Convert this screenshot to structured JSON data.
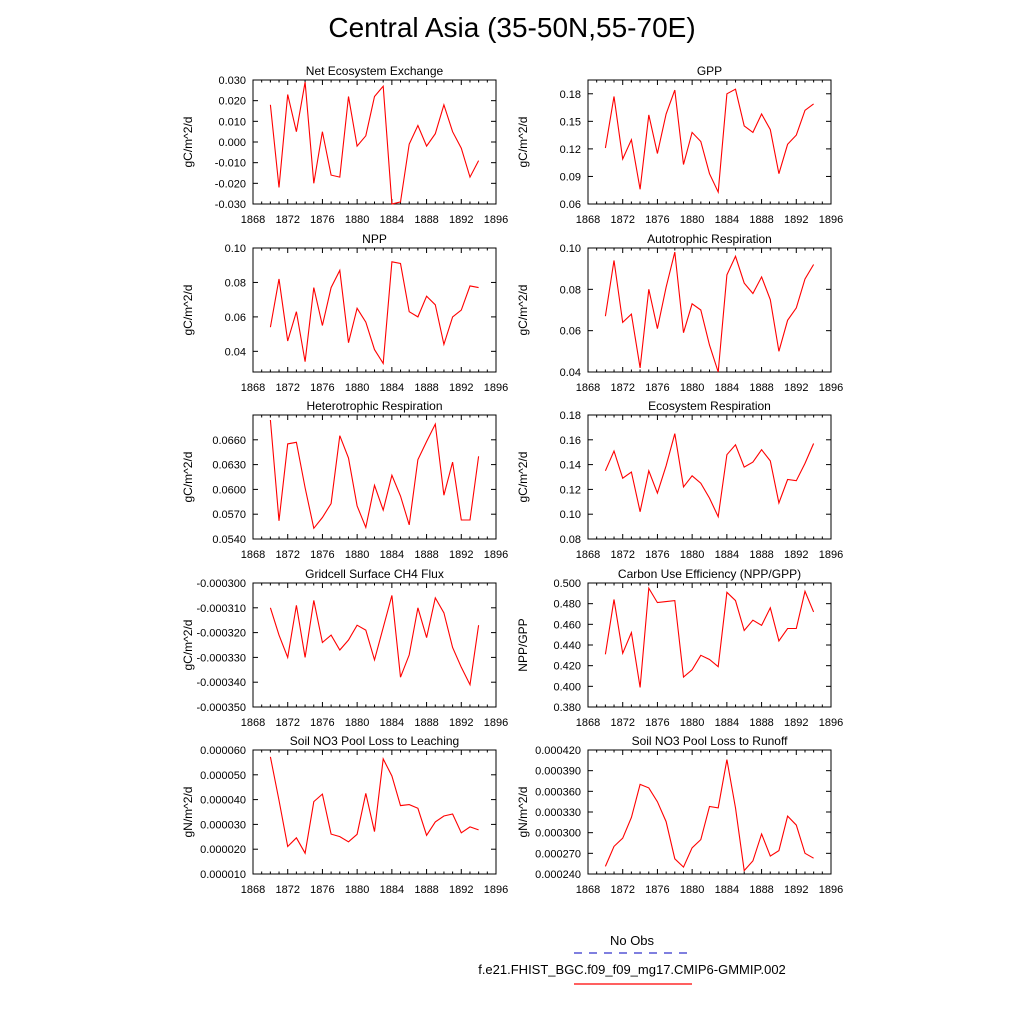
{
  "figure": {
    "title": "Central Asia (35-50N,55-70E)",
    "line_color": "#ff0000",
    "obs_color": "#3333cc"
  },
  "legend": {
    "obs_label": "No Obs",
    "model_label": "f.e21.FHIST_BGC.f09_f09_mg17.CMIP6-GMMIP.002"
  },
  "chart_data": [
    {
      "type": "line",
      "title": "Net Ecosystem Exchange",
      "ylabel": "gC/m^2/d",
      "xlim": [
        1868,
        1896
      ],
      "ylim": [
        -0.03,
        0.03
      ],
      "x_ticks": [
        "1868",
        "1872",
        "1876",
        "1880",
        "1884",
        "1888",
        "1892",
        "1896"
      ],
      "y_ticks": [
        "-0.030",
        "-0.020",
        "-0.010",
        "0.000",
        "0.010",
        "0.020",
        "0.030"
      ],
      "x": [
        1870,
        1871,
        1872,
        1873,
        1874,
        1875,
        1876,
        1877,
        1878,
        1879,
        1880,
        1881,
        1882,
        1883,
        1884,
        1885,
        1886,
        1887,
        1888,
        1889,
        1890,
        1891,
        1892,
        1893,
        1894
      ],
      "series": [
        {
          "values": [
            0.018,
            -0.022,
            0.023,
            0.005,
            0.029,
            -0.02,
            0.005,
            -0.016,
            -0.017,
            0.022,
            -0.002,
            0.003,
            0.022,
            0.027,
            -0.03,
            -0.029,
            -0.001,
            0.008,
            -0.002,
            0.004,
            0.018,
            0.005,
            -0.003,
            -0.017,
            -0.009
          ]
        }
      ]
    },
    {
      "type": "line",
      "title": "GPP",
      "ylabel": "gC/m^2/d",
      "xlim": [
        1868,
        1896
      ],
      "ylim": [
        0.06,
        0.195
      ],
      "x_ticks": [
        "1868",
        "1872",
        "1876",
        "1880",
        "1884",
        "1888",
        "1892",
        "1896"
      ],
      "y_ticks": [
        "0.06",
        "0.09",
        "0.12",
        "0.15",
        "0.18"
      ],
      "x": [
        1870,
        1871,
        1872,
        1873,
        1874,
        1875,
        1876,
        1877,
        1878,
        1879,
        1880,
        1881,
        1882,
        1883,
        1884,
        1885,
        1886,
        1887,
        1888,
        1889,
        1890,
        1891,
        1892,
        1893,
        1894
      ],
      "series": [
        {
          "values": [
            0.121,
            0.177,
            0.109,
            0.13,
            0.076,
            0.157,
            0.115,
            0.158,
            0.184,
            0.103,
            0.138,
            0.128,
            0.093,
            0.073,
            0.18,
            0.185,
            0.145,
            0.138,
            0.158,
            0.141,
            0.093,
            0.125,
            0.135,
            0.162,
            0.169
          ]
        }
      ]
    },
    {
      "type": "line",
      "title": "NPP",
      "ylabel": "gC/m^2/d",
      "xlim": [
        1868,
        1896
      ],
      "ylim": [
        0.028,
        0.1
      ],
      "x_ticks": [
        "1868",
        "1872",
        "1876",
        "1880",
        "1884",
        "1888",
        "1892",
        "1896"
      ],
      "y_ticks": [
        "0.04",
        "0.06",
        "0.08",
        "0.10"
      ],
      "x": [
        1870,
        1871,
        1872,
        1873,
        1874,
        1875,
        1876,
        1877,
        1878,
        1879,
        1880,
        1881,
        1882,
        1883,
        1884,
        1885,
        1886,
        1887,
        1888,
        1889,
        1890,
        1891,
        1892,
        1893,
        1894
      ],
      "series": [
        {
          "values": [
            0.054,
            0.082,
            0.046,
            0.063,
            0.034,
            0.077,
            0.055,
            0.077,
            0.087,
            0.045,
            0.065,
            0.057,
            0.041,
            0.033,
            0.092,
            0.091,
            0.063,
            0.06,
            0.072,
            0.067,
            0.044,
            0.06,
            0.064,
            0.078,
            0.077
          ]
        }
      ]
    },
    {
      "type": "line",
      "title": "Autotrophic Respiration",
      "ylabel": "gC/m^2/d",
      "xlim": [
        1868,
        1896
      ],
      "ylim": [
        0.04,
        0.1
      ],
      "x_ticks": [
        "1868",
        "1872",
        "1876",
        "1880",
        "1884",
        "1888",
        "1892",
        "1896"
      ],
      "y_ticks": [
        "0.04",
        "0.06",
        "0.08",
        "0.10"
      ],
      "x": [
        1870,
        1871,
        1872,
        1873,
        1874,
        1875,
        1876,
        1877,
        1878,
        1879,
        1880,
        1881,
        1882,
        1883,
        1884,
        1885,
        1886,
        1887,
        1888,
        1889,
        1890,
        1891,
        1892,
        1893,
        1894
      ],
      "series": [
        {
          "values": [
            0.067,
            0.094,
            0.064,
            0.068,
            0.042,
            0.08,
            0.061,
            0.081,
            0.098,
            0.059,
            0.073,
            0.07,
            0.053,
            0.04,
            0.087,
            0.096,
            0.083,
            0.078,
            0.086,
            0.075,
            0.05,
            0.065,
            0.071,
            0.085,
            0.092
          ]
        }
      ]
    },
    {
      "type": "line",
      "title": "Heterotrophic Respiration",
      "ylabel": "gC/m^2/d",
      "xlim": [
        1868,
        1896
      ],
      "ylim": [
        0.054,
        0.069
      ],
      "x_ticks": [
        "1868",
        "1872",
        "1876",
        "1880",
        "1884",
        "1888",
        "1892",
        "1896"
      ],
      "y_ticks": [
        "0.0540",
        "0.0570",
        "0.0600",
        "0.0630",
        "0.0660"
      ],
      "x": [
        1870,
        1871,
        1872,
        1873,
        1874,
        1875,
        1876,
        1877,
        1878,
        1879,
        1880,
        1881,
        1882,
        1883,
        1884,
        1885,
        1886,
        1887,
        1888,
        1889,
        1890,
        1891,
        1892,
        1893,
        1894
      ],
      "series": [
        {
          "values": [
            0.0684,
            0.0562,
            0.0655,
            0.0657,
            0.0602,
            0.0553,
            0.0566,
            0.0583,
            0.0665,
            0.0638,
            0.058,
            0.0554,
            0.0605,
            0.0575,
            0.0617,
            0.0592,
            0.0557,
            0.0636,
            0.0658,
            0.0679,
            0.0593,
            0.0633,
            0.0563,
            0.0563,
            0.064
          ]
        }
      ]
    },
    {
      "type": "line",
      "title": "Ecosystem Respiration",
      "ylabel": "gC/m^2/d",
      "xlim": [
        1868,
        1896
      ],
      "ylim": [
        0.08,
        0.18
      ],
      "x_ticks": [
        "1868",
        "1872",
        "1876",
        "1880",
        "1884",
        "1888",
        "1892",
        "1896"
      ],
      "y_ticks": [
        "0.08",
        "0.10",
        "0.12",
        "0.14",
        "0.16",
        "0.18"
      ],
      "x": [
        1870,
        1871,
        1872,
        1873,
        1874,
        1875,
        1876,
        1877,
        1878,
        1879,
        1880,
        1881,
        1882,
        1883,
        1884,
        1885,
        1886,
        1887,
        1888,
        1889,
        1890,
        1891,
        1892,
        1893,
        1894
      ],
      "series": [
        {
          "values": [
            0.135,
            0.151,
            0.129,
            0.134,
            0.102,
            0.135,
            0.117,
            0.139,
            0.165,
            0.122,
            0.131,
            0.125,
            0.113,
            0.098,
            0.148,
            0.156,
            0.138,
            0.142,
            0.152,
            0.143,
            0.109,
            0.128,
            0.127,
            0.141,
            0.157
          ]
        }
      ]
    },
    {
      "type": "line",
      "title": "Gridcell Surface CH4 Flux",
      "ylabel": "gC/m^2/d",
      "xlim": [
        1868,
        1896
      ],
      "ylim": [
        -0.00035,
        -0.0003
      ],
      "x_ticks": [
        "1868",
        "1872",
        "1876",
        "1880",
        "1884",
        "1888",
        "1892",
        "1896"
      ],
      "y_ticks": [
        "-0.000350",
        "-0.000340",
        "-0.000330",
        "-0.000320",
        "-0.000310",
        "-0.000300"
      ],
      "x": [
        1870,
        1871,
        1872,
        1873,
        1874,
        1875,
        1876,
        1877,
        1878,
        1879,
        1880,
        1881,
        1882,
        1883,
        1884,
        1885,
        1886,
        1887,
        1888,
        1889,
        1890,
        1891,
        1892,
        1893,
        1894
      ],
      "series": [
        {
          "values": [
            -0.00031,
            -0.000321,
            -0.00033,
            -0.000309,
            -0.00033,
            -0.000307,
            -0.000324,
            -0.000321,
            -0.000327,
            -0.000323,
            -0.000317,
            -0.000319,
            -0.000331,
            -0.000318,
            -0.000305,
            -0.000338,
            -0.000329,
            -0.00031,
            -0.000322,
            -0.000306,
            -0.000312,
            -0.000326,
            -0.000334,
            -0.000341,
            -0.000317
          ]
        }
      ]
    },
    {
      "type": "line",
      "title": "Carbon Use Efficiency (NPP/GPP)",
      "ylabel": "NPP/GPP",
      "xlim": [
        1868,
        1896
      ],
      "ylim": [
        0.38,
        0.5
      ],
      "x_ticks": [
        "1868",
        "1872",
        "1876",
        "1880",
        "1884",
        "1888",
        "1892",
        "1896"
      ],
      "y_ticks": [
        "0.380",
        "0.400",
        "0.420",
        "0.440",
        "0.460",
        "0.480",
        "0.500"
      ],
      "x": [
        1870,
        1871,
        1872,
        1873,
        1874,
        1875,
        1876,
        1877,
        1878,
        1879,
        1880,
        1881,
        1882,
        1883,
        1884,
        1885,
        1886,
        1887,
        1888,
        1889,
        1890,
        1891,
        1892,
        1893,
        1894
      ],
      "series": [
        {
          "values": [
            0.431,
            0.484,
            0.432,
            0.452,
            0.399,
            0.495,
            0.481,
            0.482,
            0.483,
            0.409,
            0.416,
            0.43,
            0.426,
            0.419,
            0.491,
            0.483,
            0.454,
            0.464,
            0.459,
            0.476,
            0.444,
            0.456,
            0.456,
            0.492,
            0.472
          ]
        }
      ]
    },
    {
      "type": "line",
      "title": "Soil NO3 Pool Loss to Leaching",
      "ylabel": "gN/m^2/d",
      "xlim": [
        1868,
        1896
      ],
      "ylim": [
        1e-05,
        6e-05
      ],
      "x_ticks": [
        "1868",
        "1872",
        "1876",
        "1880",
        "1884",
        "1888",
        "1892",
        "1896"
      ],
      "y_ticks": [
        "0.000010",
        "0.000020",
        "0.000030",
        "0.000040",
        "0.000050",
        "0.000060"
      ],
      "x": [
        1870,
        1871,
        1872,
        1873,
        1874,
        1875,
        1876,
        1877,
        1878,
        1879,
        1880,
        1881,
        1882,
        1883,
        1884,
        1885,
        1886,
        1887,
        1888,
        1889,
        1890,
        1891,
        1892,
        1893,
        1894
      ],
      "series": [
        {
          "values": [
            5.72e-05,
            3.97e-05,
            2.11e-05,
            2.46e-05,
            1.84e-05,
            3.92e-05,
            4.22e-05,
            2.61e-05,
            2.51e-05,
            2.3e-05,
            2.6e-05,
            4.25e-05,
            2.71e-05,
            5.64e-05,
            4.95e-05,
            3.76e-05,
            3.8e-05,
            3.65e-05,
            2.56e-05,
            3.1e-05,
            3.34e-05,
            3.42e-05,
            2.66e-05,
            2.9e-05,
            2.78e-05
          ]
        }
      ]
    },
    {
      "type": "line",
      "title": "Soil NO3 Pool Loss to Runoff",
      "ylabel": "gN/m^2/d",
      "xlim": [
        1868,
        1896
      ],
      "ylim": [
        0.00024,
        0.00042
      ],
      "x_ticks": [
        "1868",
        "1872",
        "1876",
        "1880",
        "1884",
        "1888",
        "1892",
        "1896"
      ],
      "y_ticks": [
        "0.000240",
        "0.000270",
        "0.000300",
        "0.000330",
        "0.000360",
        "0.000390",
        "0.000420"
      ],
      "x": [
        1870,
        1871,
        1872,
        1873,
        1874,
        1875,
        1876,
        1877,
        1878,
        1879,
        1880,
        1881,
        1882,
        1883,
        1884,
        1885,
        1886,
        1887,
        1888,
        1889,
        1890,
        1891,
        1892,
        1893,
        1894
      ],
      "series": [
        {
          "values": [
            0.000251,
            0.00028,
            0.000292,
            0.000322,
            0.00037,
            0.000365,
            0.000345,
            0.000316,
            0.000262,
            0.00025,
            0.000278,
            0.00029,
            0.000338,
            0.000336,
            0.000406,
            0.000336,
            0.000245,
            0.000259,
            0.000298,
            0.000266,
            0.000274,
            0.000324,
            0.000311,
            0.00027,
            0.000263
          ]
        }
      ]
    }
  ]
}
